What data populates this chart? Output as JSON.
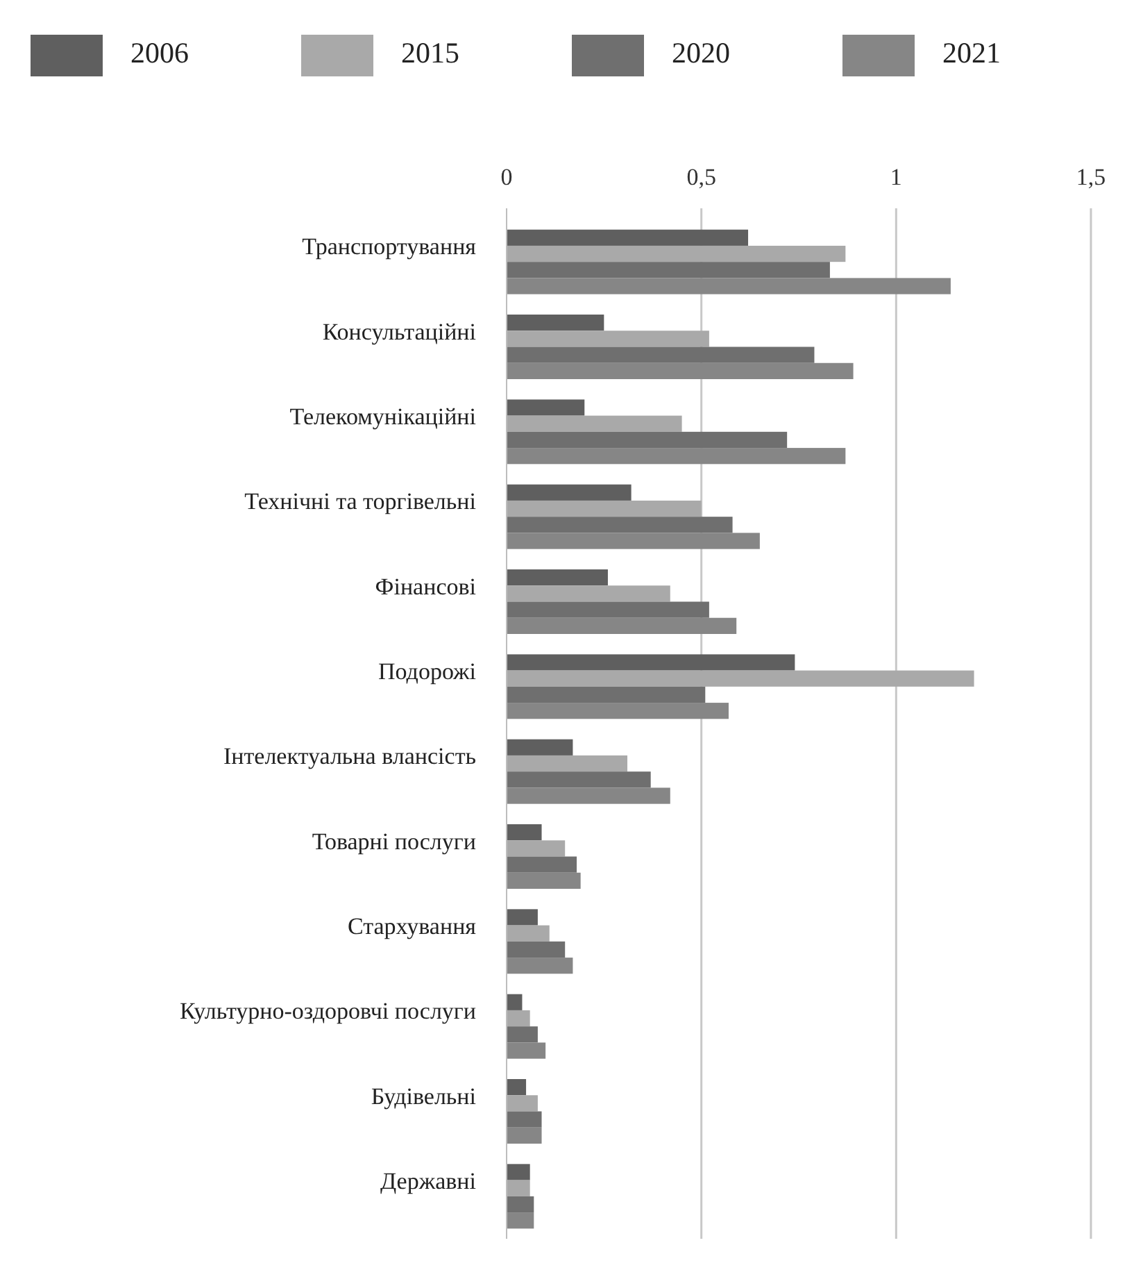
{
  "chart_data": {
    "type": "bar",
    "orientation": "horizontal",
    "categories": [
      "Транспортування",
      "Консультаційні",
      "Телекомунікаційні",
      "Технічні та торгівельні",
      "Фінансові",
      "Подорожі",
      "Інтелектуальна  влансість",
      "Товарні послуги",
      "Стархування",
      "Культурно-оздоровчі послуги",
      "Будівельні",
      "Державні"
    ],
    "series": [
      {
        "name": "2006",
        "color": "#5f5f5f",
        "values": [
          0.62,
          0.25,
          0.2,
          0.32,
          0.26,
          0.74,
          0.17,
          0.09,
          0.08,
          0.04,
          0.05,
          0.06
        ]
      },
      {
        "name": "2015",
        "color": "#a9a9a9",
        "values": [
          0.87,
          0.52,
          0.45,
          0.5,
          0.42,
          1.2,
          0.31,
          0.15,
          0.11,
          0.06,
          0.08,
          0.06
        ]
      },
      {
        "name": "2020",
        "color": "#6f6f6f",
        "values": [
          0.83,
          0.79,
          0.72,
          0.58,
          0.52,
          0.51,
          0.37,
          0.18,
          0.15,
          0.08,
          0.09,
          0.07
        ]
      },
      {
        "name": "2021",
        "color": "#868686",
        "values": [
          1.14,
          0.89,
          0.87,
          0.65,
          0.59,
          0.57,
          0.42,
          0.19,
          0.17,
          0.1,
          0.09,
          0.07
        ]
      }
    ],
    "xlim": [
      0,
      1.5
    ],
    "xticks": [
      0,
      {
        "value": 0.5,
        "label": "0,5"
      },
      1,
      {
        "value": 1.5,
        "label": "1,5"
      }
    ],
    "grid": "x",
    "legend": "top"
  }
}
